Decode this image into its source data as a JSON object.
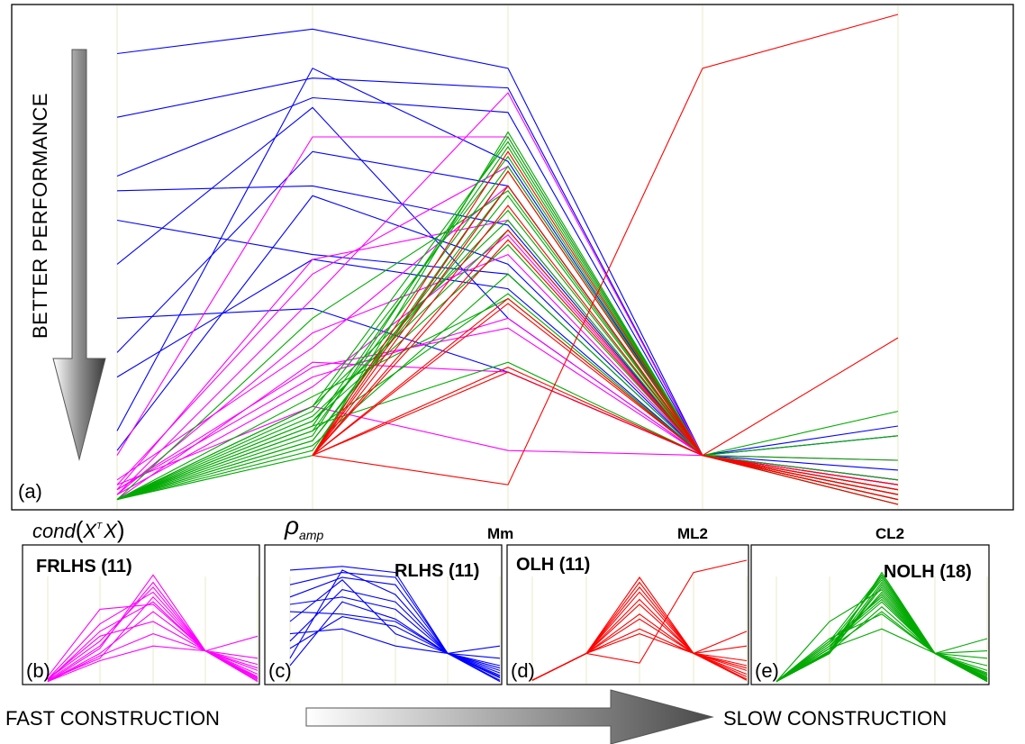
{
  "figure": {
    "side_label": "BETTER PERFORMANCE",
    "bottom_left_label": "FAST CONSTRUCTION",
    "bottom_right_label": "SLOW CONSTRUCTION",
    "main_panel_letter": "(a)"
  },
  "axes": [
    {
      "id": "cond",
      "label_prefix": "cond",
      "label_paren_open": "(",
      "label_X1": "X",
      "label_T": "T",
      "label_X2": "X",
      "label_paren_close": ")"
    },
    {
      "id": "rho",
      "label_rho": "ρ",
      "label_sub": "amp"
    },
    {
      "id": "mm",
      "label": "Mm"
    },
    {
      "id": "ml2",
      "label": "ML2"
    },
    {
      "id": "cl2",
      "label": "CL2"
    }
  ],
  "colors": {
    "frlhs": "#ff00ff",
    "rlhs": "#0000ff",
    "olh": "#ff0000",
    "nolh": "#00aa00",
    "grid": "#e8e8c8",
    "frame": "#000000"
  },
  "chart_data": [
    {
      "type": "line",
      "panel": "a",
      "note_scale": "parallel coordinates; values are normalized axis positions from 0 (top) to 1 (bottom)",
      "axes": [
        "cond(X^T X)",
        "rho_amp",
        "Mm",
        "ML2",
        "CL2"
      ],
      "ylim": [
        0,
        1
      ],
      "series": [
        {
          "name": "RLHS",
          "color": "#0000ff",
          "lines": [
            [
              0.08,
              0.03,
              0.11,
              0.9,
              0.93
            ],
            [
              0.21,
              0.13,
              0.15,
              0.9,
              0.95
            ],
            [
              0.33,
              0.17,
              0.2,
              0.9,
              0.96
            ],
            [
              0.36,
              0.35,
              0.43,
              0.9,
              0.97
            ],
            [
              0.42,
              0.49,
              0.53,
              0.9,
              0.98
            ],
            [
              0.51,
              0.19,
              0.62,
              0.9,
              0.99
            ],
            [
              0.62,
              0.6,
              0.73,
              0.9,
              0.99
            ],
            [
              0.74,
              0.5,
              0.56,
              0.9,
              1.0
            ],
            [
              0.89,
              0.37,
              0.51,
              0.9,
              0.84
            ],
            [
              0.85,
              0.11,
              0.3,
              0.9,
              0.98
            ],
            [
              0.69,
              0.28,
              0.35,
              0.9,
              0.86
            ]
          ]
        },
        {
          "name": "FRLHS",
          "color": "#ff00ff",
          "lines": [
            [
              0.96,
              0.8,
              0.89,
              0.9,
              0.91
            ],
            [
              0.97,
              0.74,
              0.62,
              0.9,
              0.95
            ],
            [
              0.98,
              0.65,
              0.49,
              0.9,
              0.96
            ],
            [
              0.96,
              0.53,
              0.31,
              0.9,
              0.97
            ],
            [
              0.97,
              0.72,
              0.64,
              0.9,
              0.98
            ],
            [
              0.95,
              0.68,
              0.35,
              0.9,
              0.99
            ],
            [
              0.98,
              0.58,
              0.16,
              0.9,
              0.95
            ],
            [
              0.99,
              0.71,
              0.73,
              0.9,
              0.98
            ],
            [
              0.97,
              0.5,
              0.42,
              0.9,
              0.96
            ],
            [
              0.9,
              0.25,
              0.25,
              0.9,
              0.96
            ],
            [
              0.98,
              0.76,
              0.45,
              0.9,
              0.99
            ]
          ]
        },
        {
          "name": "OLH",
          "color": "#ff0000",
          "lines": [
            [
              null,
              0.9,
              0.96,
              0.11,
              0.0
            ],
            [
              null,
              0.9,
              0.32,
              0.9,
              0.66
            ],
            [
              null,
              0.9,
              0.39,
              0.9,
              0.97
            ],
            [
              null,
              0.9,
              0.44,
              0.9,
              0.98
            ],
            [
              null,
              0.9,
              0.59,
              0.9,
              0.99
            ],
            [
              null,
              0.9,
              0.72,
              0.9,
              0.99
            ],
            [
              null,
              0.9,
              0.28,
              0.9,
              1.0
            ],
            [
              null,
              0.9,
              0.35,
              0.9,
              0.98
            ],
            [
              null,
              0.9,
              0.73,
              0.9,
              0.99
            ],
            [
              null,
              0.9,
              0.46,
              0.9,
              0.97
            ],
            [
              null,
              0.9,
              0.58,
              0.9,
              0.96
            ]
          ]
        },
        {
          "name": "NOLH",
          "color": "#00aa00",
          "lines": [
            [
              0.99,
              0.9,
              0.24,
              0.9,
              0.81
            ],
            [
              0.99,
              0.84,
              0.27,
              0.9,
              0.86
            ],
            [
              0.99,
              0.85,
              0.31,
              0.9,
              0.91
            ],
            [
              0.99,
              0.87,
              0.35,
              0.9,
              0.95
            ],
            [
              0.99,
              0.8,
              0.42,
              0.9,
              0.97
            ],
            [
              0.99,
              0.83,
              0.47,
              0.9,
              0.98
            ],
            [
              0.99,
              0.78,
              0.58,
              0.9,
              0.99
            ],
            [
              0.99,
              0.84,
              0.71,
              0.9,
              0.99
            ],
            [
              0.99,
              0.81,
              0.29,
              0.9,
              0.99
            ],
            [
              0.99,
              0.62,
              0.36,
              0.9,
              1.0
            ],
            [
              0.99,
              0.86,
              0.25,
              0.9,
              0.99
            ],
            [
              0.99,
              0.83,
              0.4,
              0.9,
              0.98
            ],
            [
              0.99,
              0.89,
              0.32,
              0.9,
              0.99
            ],
            [
              0.99,
              0.82,
              0.44,
              0.9,
              1.0
            ],
            [
              0.99,
              0.85,
              0.57,
              0.9,
              0.99
            ],
            [
              0.99,
              0.87,
              0.37,
              0.9,
              0.97
            ],
            [
              0.99,
              0.88,
              0.53,
              0.9,
              0.99
            ],
            [
              0.99,
              0.8,
              0.26,
              0.9,
              0.98
            ]
          ]
        }
      ]
    },
    {
      "type": "line",
      "panel": "b",
      "title": "FRLHS (11)",
      "letter": "(b)",
      "series_ref": "FRLHS",
      "color": "#ff00ff",
      "ylim": [
        0,
        1
      ],
      "lines": [
        [
          0.98,
          0.8,
          0.3,
          0.74,
          0.62
        ],
        [
          0.99,
          0.72,
          0.12,
          0.74,
          0.8
        ],
        [
          0.97,
          0.66,
          0.22,
          0.74,
          0.85
        ],
        [
          0.98,
          0.58,
          0.34,
          0.74,
          0.88
        ],
        [
          0.99,
          0.76,
          0.42,
          0.74,
          0.9
        ],
        [
          0.97,
          0.62,
          0.5,
          0.74,
          0.93
        ],
        [
          0.98,
          0.7,
          0.18,
          0.74,
          0.95
        ],
        [
          0.99,
          0.78,
          0.6,
          0.74,
          0.96
        ],
        [
          0.97,
          0.52,
          0.26,
          0.74,
          0.97
        ],
        [
          0.95,
          0.4,
          0.36,
          0.74,
          0.98
        ],
        [
          0.99,
          0.82,
          0.7,
          0.74,
          0.99
        ]
      ]
    },
    {
      "type": "line",
      "panel": "c",
      "title": "RLHS (11)",
      "letter": "(c)",
      "series_ref": "RLHS",
      "color": "#0000ff",
      "ylim": [
        0,
        1
      ],
      "lines": [
        [
          0.08,
          0.05,
          0.1,
          0.76,
          0.7
        ],
        [
          0.2,
          0.1,
          0.14,
          0.76,
          0.86
        ],
        [
          0.3,
          0.14,
          0.2,
          0.76,
          0.9
        ],
        [
          0.36,
          0.3,
          0.4,
          0.76,
          0.92
        ],
        [
          0.42,
          0.44,
          0.5,
          0.76,
          0.94
        ],
        [
          0.5,
          0.16,
          0.6,
          0.76,
          0.96
        ],
        [
          0.6,
          0.56,
          0.7,
          0.76,
          0.98
        ],
        [
          0.72,
          0.46,
          0.54,
          0.76,
          0.99
        ],
        [
          0.86,
          0.34,
          0.48,
          0.76,
          0.8
        ],
        [
          0.8,
          0.08,
          0.28,
          0.76,
          0.95
        ],
        [
          0.66,
          0.24,
          0.34,
          0.76,
          0.88
        ]
      ]
    },
    {
      "type": "line",
      "panel": "d",
      "title": "OLH (11)",
      "letter": "(d)",
      "series_ref": "OLH",
      "color": "#ff0000",
      "ylim": [
        0,
        1
      ],
      "lines": [
        [
          0.98,
          0.76,
          0.84,
          0.1,
          0.0
        ],
        [
          0.98,
          0.76,
          0.18,
          0.76,
          0.58
        ],
        [
          0.98,
          0.76,
          0.26,
          0.76,
          0.82
        ],
        [
          0.98,
          0.76,
          0.32,
          0.76,
          0.86
        ],
        [
          0.98,
          0.76,
          0.44,
          0.76,
          0.9
        ],
        [
          0.98,
          0.76,
          0.56,
          0.76,
          0.93
        ],
        [
          0.98,
          0.76,
          0.14,
          0.76,
          0.95
        ],
        [
          0.98,
          0.76,
          0.22,
          0.76,
          0.97
        ],
        [
          0.98,
          0.76,
          0.6,
          0.76,
          0.98
        ],
        [
          0.98,
          0.76,
          0.36,
          0.76,
          0.88
        ],
        [
          0.98,
          0.76,
          0.48,
          0.76,
          0.7
        ]
      ]
    },
    {
      "type": "line",
      "panel": "e",
      "title": "NOLH (18)",
      "letter": "(e)",
      "series_ref": "NOLH",
      "color": "#00aa00",
      "ylim": [
        0,
        1
      ],
      "lines": [
        [
          0.99,
          0.76,
          0.1,
          0.76,
          0.64
        ],
        [
          0.99,
          0.72,
          0.14,
          0.76,
          0.74
        ],
        [
          0.99,
          0.74,
          0.18,
          0.76,
          0.8
        ],
        [
          0.99,
          0.76,
          0.22,
          0.76,
          0.86
        ],
        [
          0.99,
          0.66,
          0.3,
          0.76,
          0.9
        ],
        [
          0.99,
          0.7,
          0.34,
          0.76,
          0.92
        ],
        [
          0.99,
          0.64,
          0.44,
          0.76,
          0.94
        ],
        [
          0.99,
          0.72,
          0.56,
          0.76,
          0.96
        ],
        [
          0.99,
          0.68,
          0.16,
          0.76,
          0.98
        ],
        [
          0.99,
          0.5,
          0.24,
          0.76,
          0.99
        ],
        [
          0.99,
          0.74,
          0.12,
          0.76,
          0.97
        ],
        [
          0.99,
          0.7,
          0.28,
          0.76,
          0.95
        ],
        [
          0.99,
          0.76,
          0.2,
          0.76,
          0.93
        ],
        [
          0.99,
          0.68,
          0.32,
          0.76,
          0.99
        ],
        [
          0.99,
          0.72,
          0.42,
          0.76,
          0.97
        ],
        [
          0.99,
          0.74,
          0.26,
          0.76,
          0.96
        ],
        [
          0.99,
          0.75,
          0.38,
          0.76,
          0.98
        ],
        [
          0.99,
          0.66,
          0.12,
          0.76,
          0.99
        ]
      ]
    }
  ]
}
